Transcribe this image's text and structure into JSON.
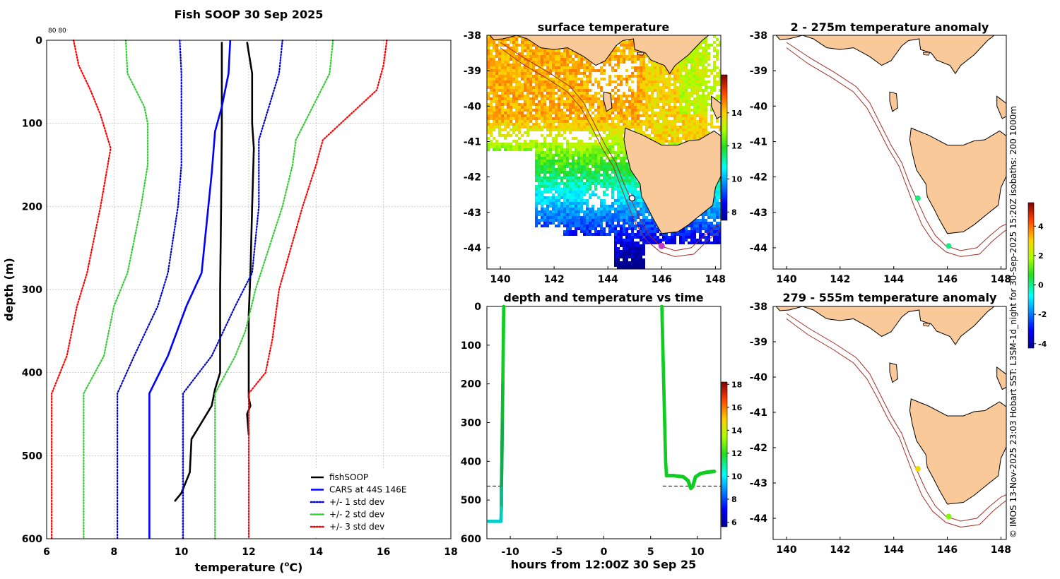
{
  "chart_data": [
    {
      "type": "line",
      "title": "Fish SOOP 30 Sep 2025",
      "xlabel": "temperature (",
      "xlabel_sup": "o",
      "xlabel_end": "C)",
      "ylabel": "depth (m)",
      "xlim": [
        6,
        18
      ],
      "ylim": [
        0,
        600
      ],
      "y_reversed": true,
      "xticks": [
        "6",
        "8",
        "10",
        "12",
        "14",
        "16",
        "18"
      ],
      "yticks": [
        "0",
        "100",
        "200",
        "300",
        "400",
        "500",
        "600"
      ],
      "corner_note": "80 80",
      "series": [
        {
          "name": "fishSOOP",
          "color": "#000000",
          "style": "solid",
          "points": [
            [
              11.2,
              2
            ],
            [
              11.2,
              100
            ],
            [
              11.18,
              200
            ],
            [
              11.15,
              300
            ],
            [
              11.15,
              400
            ],
            [
              11.0,
              420
            ],
            [
              10.9,
              440
            ],
            [
              10.6,
              460
            ],
            [
              10.3,
              480
            ],
            [
              10.25,
              520
            ],
            [
              10.0,
              545
            ],
            [
              9.8,
              555
            ]
          ]
        },
        {
          "name": "fishSOOP-2",
          "color": "#000000",
          "style": "solid",
          "legend": false,
          "points": [
            [
              11.95,
              2
            ],
            [
              12.1,
              40
            ],
            [
              12.1,
              100
            ],
            [
              12.15,
              130
            ],
            [
              12.1,
              200
            ],
            [
              12.05,
              280
            ],
            [
              12.0,
              330
            ],
            [
              12.0,
              380
            ],
            [
              12.0,
              430
            ],
            [
              12.05,
              440
            ],
            [
              11.95,
              450
            ],
            [
              12.0,
              475
            ]
          ]
        },
        {
          "name": "CARS at 44S 146E",
          "color": "#0000ff",
          "style": "solid",
          "points": [
            [
              11.45,
              0
            ],
            [
              11.4,
              40
            ],
            [
              11.2,
              80
            ],
            [
              11.0,
              110
            ],
            [
              10.9,
              160
            ],
            [
              10.6,
              280
            ],
            [
              10.15,
              320
            ],
            [
              9.6,
              380
            ],
            [
              9.05,
              425
            ],
            [
              9.05,
              600
            ]
          ]
        },
        {
          "name": "+/- 1 std dev",
          "color": "#0000cc",
          "style": "dotted",
          "points": [
            [
              9.95,
              0
            ],
            [
              10.0,
              40
            ],
            [
              10.0,
              80
            ],
            [
              10.0,
              150
            ],
            [
              9.9,
              200
            ],
            [
              9.6,
              280
            ],
            [
              9.3,
              320
            ],
            [
              8.6,
              380
            ],
            [
              8.1,
              425
            ],
            [
              8.1,
              600
            ]
          ]
        },
        {
          "name": "+/- 1 std dev high",
          "color": "#0000cc",
          "style": "dotted",
          "legend": false,
          "points": [
            [
              13.0,
              0
            ],
            [
              12.9,
              40
            ],
            [
              12.6,
              80
            ],
            [
              12.3,
              120
            ],
            [
              12.3,
              200
            ],
            [
              12.1,
              280
            ],
            [
              11.6,
              320
            ],
            [
              10.9,
              380
            ],
            [
              10.05,
              425
            ],
            [
              10.05,
              600
            ]
          ]
        },
        {
          "name": "+/- 2 std dev",
          "color": "#33cc33",
          "style": "dotted",
          "points": [
            [
              8.35,
              0
            ],
            [
              8.4,
              40
            ],
            [
              8.9,
              80
            ],
            [
              9.0,
              100
            ],
            [
              9.0,
              150
            ],
            [
              8.8,
              200
            ],
            [
              8.4,
              280
            ],
            [
              8.0,
              320
            ],
            [
              7.7,
              380
            ],
            [
              7.1,
              425
            ],
            [
              7.1,
              600
            ]
          ]
        },
        {
          "name": "+/- 2 std dev high",
          "color": "#33cc33",
          "style": "dotted",
          "legend": false,
          "points": [
            [
              14.5,
              0
            ],
            [
              14.4,
              40
            ],
            [
              13.9,
              80
            ],
            [
              13.4,
              120
            ],
            [
              13.3,
              150
            ],
            [
              13.0,
              200
            ],
            [
              12.2,
              300
            ],
            [
              11.9,
              350
            ],
            [
              11.6,
              380
            ],
            [
              11.0,
              425
            ],
            [
              11.0,
              600
            ]
          ]
        },
        {
          "name": "+/- 3 std dev",
          "color": "#ff0000",
          "style": "dotted",
          "points": [
            [
              6.8,
              0
            ],
            [
              6.95,
              30
            ],
            [
              7.3,
              60
            ],
            [
              7.6,
              90
            ],
            [
              7.9,
              130
            ],
            [
              7.6,
              200
            ],
            [
              7.2,
              280
            ],
            [
              6.9,
              320
            ],
            [
              6.6,
              380
            ],
            [
              6.15,
              425
            ],
            [
              6.15,
              600
            ]
          ]
        },
        {
          "name": "+/- 3 std dev high",
          "color": "#ff0000",
          "style": "dotted",
          "legend": false,
          "points": [
            [
              16.1,
              0
            ],
            [
              16.0,
              30
            ],
            [
              15.8,
              60
            ],
            [
              15.0,
              90
            ],
            [
              14.2,
              120
            ],
            [
              14.0,
              150
            ],
            [
              13.6,
              200
            ],
            [
              12.9,
              300
            ],
            [
              12.7,
              360
            ],
            [
              12.5,
              400
            ],
            [
              12.0,
              425
            ],
            [
              12.0,
              600
            ]
          ]
        }
      ]
    },
    {
      "type": "heatmap",
      "title": "surface temperature",
      "xlim": [
        139.5,
        148.2
      ],
      "ylim": [
        -44.6,
        -38
      ],
      "xticks": [
        "140",
        "142",
        "144",
        "146",
        "148"
      ],
      "yticks": [
        "-38",
        "-39",
        "-40",
        "-41",
        "-42",
        "-43",
        "-44"
      ],
      "colorbar": {
        "min": 7.5,
        "max": 16.3,
        "ticks": [
          "8",
          "10",
          "12",
          "14"
        ]
      },
      "markers": [
        {
          "lon": 144.9,
          "lat": -42.6,
          "color": "#ffffff",
          "edge": "#000000"
        },
        {
          "lon": 146.0,
          "lat": -43.95,
          "color": "#c040c0",
          "edge": "#c040c0"
        }
      ]
    },
    {
      "type": "scatter",
      "title": "depth and temperature vs time",
      "xlabel": "hours from 12:00Z 30 Sep 25",
      "xlim": [
        -12.5,
        12.5
      ],
      "ylim": [
        0,
        600
      ],
      "y_reversed": true,
      "xticks": [
        "-10",
        "-5",
        "0",
        "5",
        "10"
      ],
      "yticks": [
        "0",
        "100",
        "200",
        "300",
        "400",
        "500",
        "600"
      ],
      "colorbar": {
        "min": 5.6,
        "max": 18.2,
        "ticks": [
          "6",
          "8",
          "10",
          "12",
          "14",
          "16",
          "18"
        ]
      },
      "reference_depth": 464,
      "cast1": {
        "down": [
          [
            -10.7,
            0
          ],
          [
            -10.75,
            100
          ],
          [
            -10.8,
            200
          ],
          [
            -10.85,
            300
          ],
          [
            -10.9,
            400
          ],
          [
            -10.95,
            470
          ],
          [
            -10.95,
            520
          ],
          [
            -11.0,
            555
          ]
        ],
        "bottom": [
          [
            -11.0,
            555
          ],
          [
            -11.5,
            555
          ],
          [
            -12.0,
            555
          ],
          [
            -12.3,
            555
          ]
        ],
        "colors": [
          "#11cc22",
          "#11cc22",
          "#11bb33",
          "#11aa44",
          "#11aa55",
          "#00bb88",
          "#00ccbb",
          "#00cccc"
        ]
      },
      "cast2": {
        "down": [
          [
            6.2,
            0
          ],
          [
            6.3,
            100
          ],
          [
            6.4,
            200
          ],
          [
            6.5,
            300
          ],
          [
            6.6,
            400
          ],
          [
            6.7,
            437
          ]
        ],
        "bottom": [
          [
            6.7,
            437
          ],
          [
            7.5,
            437
          ],
          [
            8.5,
            440
          ],
          [
            9.0,
            450
          ],
          [
            9.3,
            470
          ],
          [
            9.5,
            465
          ],
          [
            9.8,
            440
          ],
          [
            10.3,
            432
          ],
          [
            11.0,
            428
          ],
          [
            11.8,
            426
          ]
        ],
        "color": "#11cc22"
      }
    },
    {
      "type": "heatmap",
      "title": "2 - 275m temperature anomaly",
      "xlim": [
        139.5,
        148.2
      ],
      "ylim": [
        -44.6,
        -38
      ],
      "xticks": [
        "140",
        "142",
        "144",
        "146",
        "148"
      ],
      "yticks": [
        "-38",
        "-39",
        "-40",
        "-41",
        "-42",
        "-43",
        "-44"
      ],
      "colorbar": {
        "min": -4.3,
        "max": 5.6,
        "ticks": [
          "-4",
          "-2",
          "0",
          "2",
          "4"
        ]
      },
      "markers": [
        {
          "lon": 144.9,
          "lat": -42.6,
          "value": 0.1
        },
        {
          "lon": 146.05,
          "lat": -43.95,
          "value": 0.0
        }
      ]
    },
    {
      "type": "heatmap",
      "title": "279 - 555m temperature anomaly",
      "xlim": [
        139.5,
        148.2
      ],
      "ylim": [
        -44.6,
        -38
      ],
      "xticks": [
        "140",
        "142",
        "144",
        "146",
        "148"
      ],
      "yticks": [
        "-38",
        "-39",
        "-40",
        "-41",
        "-42",
        "-43",
        "-44"
      ],
      "markers": [
        {
          "lon": 144.9,
          "lat": -42.6,
          "value": 2.8
        },
        {
          "lon": 146.05,
          "lat": -43.95,
          "value": 1.5
        }
      ]
    }
  ],
  "legend": [
    {
      "label": "fishSOOP",
      "color": "#000000",
      "style": "solid"
    },
    {
      "label": "CARS at 44S 146E",
      "color": "#0000ff",
      "style": "solid"
    },
    {
      "label": "+/- 1 std dev",
      "color": "#0000cc",
      "style": "dotted"
    },
    {
      "label": "+/- 2 std dev",
      "color": "#33cc33",
      "style": "dotted"
    },
    {
      "label": "+/- 3 std dev",
      "color": "#ff0000",
      "style": "dotted"
    }
  ],
  "side_note": "© IMOS 13-Nov-2025 23:03 Hobart SST: L3SM-1d_night for 30-Sep-2025 15:20Z isobaths: 200  1000m",
  "colors": {
    "land": "#f9c99a",
    "coast": "#000000",
    "isobath": "#a03028"
  }
}
